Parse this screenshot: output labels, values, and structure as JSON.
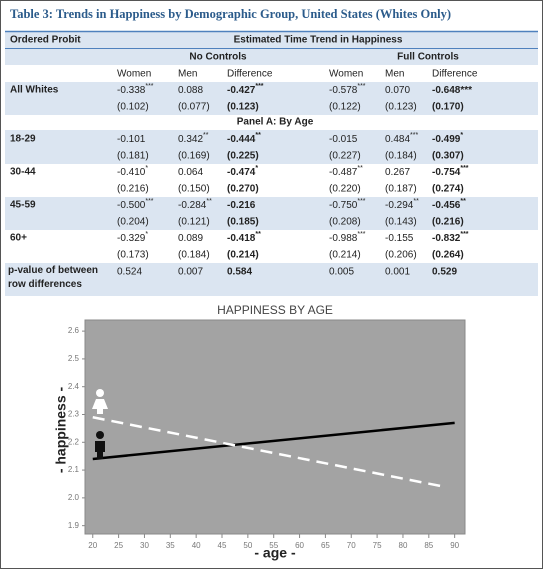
{
  "table": {
    "title": "Table 3: Trends in Happiness by Demographic Group, United States (Whites Only)",
    "stub_header": "Ordered Probit",
    "spanner": "Estimated Time Trend in Happiness",
    "groups": [
      "No Controls",
      "Full Controls"
    ],
    "columns": [
      "Women",
      "Men",
      "Difference",
      "Women",
      "Men",
      "Difference"
    ],
    "rows": [
      {
        "label": "All Whites",
        "estimates": [
          {
            "v": "-0.338",
            "sup": "***"
          },
          {
            "v": "0.088"
          },
          {
            "v": "-0.427",
            "sup": "***"
          },
          {
            "v": "-0.578",
            "sup": "***"
          },
          {
            "v": "0.070"
          },
          {
            "v": "-0.648***"
          }
        ],
        "se": [
          "(0.102)",
          "(0.077)",
          "(0.123)",
          "(0.122)",
          "(0.123)",
          "(0.170)"
        ]
      }
    ],
    "panel": "Panel A: By Age",
    "age_rows": [
      {
        "label": "18-29",
        "estimates": [
          {
            "v": "-0.101"
          },
          {
            "v": "0.342",
            "sup": "**"
          },
          {
            "v": "-0.444",
            "sup": "**"
          },
          {
            "v": "-0.015"
          },
          {
            "v": "0.484",
            "sup": "***"
          },
          {
            "v": "-0.499",
            "sup": "*"
          }
        ],
        "se": [
          "(0.181)",
          "(0.169)",
          "(0.225)",
          "(0.227)",
          "(0.184)",
          "(0.307)"
        ]
      },
      {
        "label": "30-44",
        "estimates": [
          {
            "v": "-0.410",
            "sup": "*"
          },
          {
            "v": "0.064"
          },
          {
            "v": "-0.474",
            "sup": "*"
          },
          {
            "v": "-0.487",
            "sup": "**"
          },
          {
            "v": "0.267"
          },
          {
            "v": "-0.754",
            "sup": "***"
          }
        ],
        "se": [
          "(0.216)",
          "(0.150)",
          "(0.270)",
          "(0.220)",
          "(0.187)",
          "(0.274)"
        ]
      },
      {
        "label": "45-59",
        "estimates": [
          {
            "v": "-0.500",
            "sup": "***"
          },
          {
            "v": "-0.284",
            "sup": "**"
          },
          {
            "v": "-0.216"
          },
          {
            "v": "-0.750",
            "sup": "***"
          },
          {
            "v": "-0.294",
            "sup": "**"
          },
          {
            "v": "-0.456",
            "sup": "**"
          }
        ],
        "se": [
          "(0.204)",
          "(0.121)",
          "(0.185)",
          "(0.208)",
          "(0.143)",
          "(0.216)"
        ]
      },
      {
        "label": "60+",
        "estimates": [
          {
            "v": "-0.329",
            "sup": "*"
          },
          {
            "v": "0.089"
          },
          {
            "v": "-0.418",
            "sup": "**"
          },
          {
            "v": "-0.988",
            "sup": "***"
          },
          {
            "v": "-0.155"
          },
          {
            "v": "-0.832",
            "sup": "***"
          }
        ],
        "se": [
          "(0.173)",
          "(0.184)",
          "(0.214)",
          "(0.214)",
          "(0.206)",
          "(0.264)"
        ]
      }
    ],
    "pvalue_row": {
      "label": "p-value of between row differences",
      "values": [
        "0.524",
        "0.007",
        "0.584",
        "0.005",
        "0.001",
        "0.529"
      ]
    }
  },
  "chart_data": {
    "type": "line",
    "title": "HAPPINESS BY AGE",
    "x_label": "- age -",
    "y_label": "- happiness -",
    "xlim": [
      18.5,
      92
    ],
    "ylim": [
      1.87,
      2.64
    ],
    "xticks": [
      20,
      25,
      30,
      35,
      40,
      45,
      50,
      55,
      60,
      65,
      70,
      75,
      80,
      85,
      90
    ],
    "yticks": [
      1.9,
      {
        "value": 2,
        "label": "2.0"
      },
      2.1,
      2.2,
      2.3,
      2.4,
      2.5,
      2.6
    ],
    "background": "#a3a3a3",
    "series": [
      {
        "color": "#000000",
        "dashed": false,
        "x": [
          20,
          90
        ],
        "values": [
          2.14,
          2.27
        ]
      },
      {
        "color": "#ffffff",
        "dashed": true,
        "x": [
          20,
          88
        ],
        "values": [
          2.29,
          2.04
        ]
      }
    ]
  }
}
